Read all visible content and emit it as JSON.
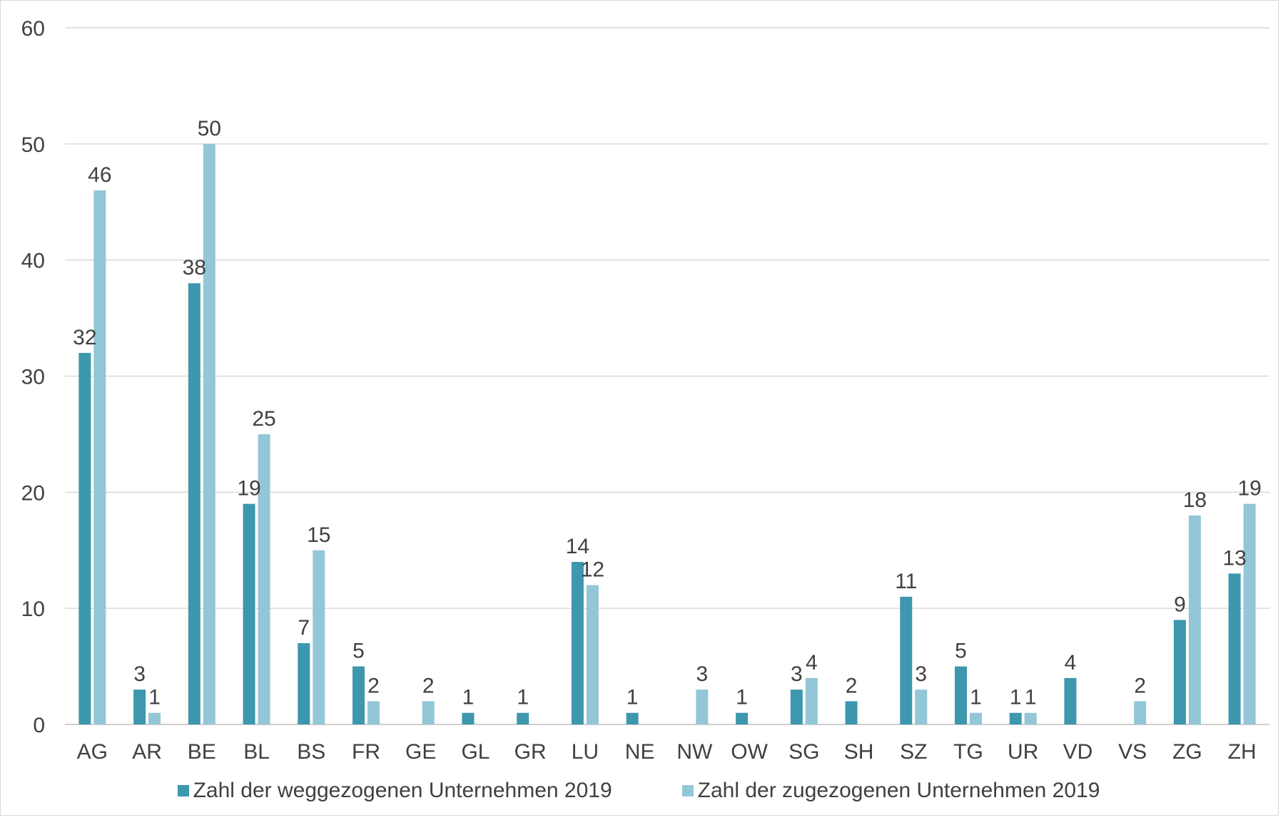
{
  "chart_data": {
    "type": "bar",
    "categories": [
      "AG",
      "AR",
      "BE",
      "BL",
      "BS",
      "FR",
      "GE",
      "GL",
      "GR",
      "LU",
      "NE",
      "NW",
      "OW",
      "SG",
      "SH",
      "SZ",
      "TG",
      "UR",
      "VD",
      "VS",
      "ZG",
      "ZH"
    ],
    "series": [
      {
        "name": "Zahl der weggezogenen Unternehmen 2019",
        "color": "#3d97ad",
        "values": [
          32,
          3,
          38,
          19,
          7,
          5,
          null,
          1,
          1,
          14,
          1,
          null,
          1,
          3,
          2,
          11,
          5,
          1,
          4,
          null,
          9,
          13
        ]
      },
      {
        "name": "Zahl der zugezogenen Unternehmen 2019",
        "color": "#93c6d6",
        "values": [
          46,
          1,
          50,
          25,
          15,
          2,
          2,
          null,
          null,
          12,
          null,
          3,
          null,
          4,
          null,
          3,
          1,
          1,
          null,
          2,
          18,
          19
        ]
      }
    ],
    "title": "",
    "xlabel": "",
    "ylabel": "",
    "ylim": [
      0,
      60
    ],
    "yticks": [
      0,
      10,
      20,
      30,
      40,
      50,
      60
    ],
    "grid": true,
    "legend_position": "bottom"
  }
}
